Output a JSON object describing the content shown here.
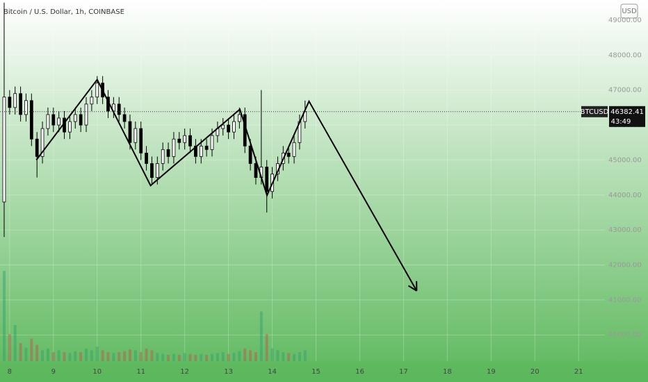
{
  "chart_data": {
    "type": "candlestick",
    "title": "Bitcoin / U.S. Dollar, 1h, COINBASE",
    "currency": "USD",
    "symbol": "BTCUSD",
    "last_price_label": "46382.41",
    "countdown": "43:49",
    "last_price": 46382.41,
    "x": [
      7.875,
      8,
      8.125,
      8.25,
      8.375,
      8.5,
      8.625,
      8.75,
      8.875,
      9,
      9.125,
      9.25,
      9.375,
      9.5,
      9.625,
      9.75,
      9.875,
      10,
      10.125,
      10.25,
      10.375,
      10.5,
      10.625,
      10.75,
      10.875,
      11,
      11.125,
      11.25,
      11.375,
      11.5,
      11.625,
      11.75,
      11.875,
      12,
      12.125,
      12.25,
      12.375,
      12.5,
      12.625,
      12.75,
      12.875,
      13,
      13.125,
      13.25,
      13.375,
      13.5,
      13.625,
      13.75,
      13.875,
      14,
      14.125,
      14.25,
      14.375,
      14.5,
      14.625,
      14.75
    ],
    "open": [
      43800,
      46800,
      46500,
      46900,
      46300,
      46700,
      45600,
      45100,
      45900,
      46300,
      46000,
      46200,
      45800,
      46100,
      46300,
      46000,
      46600,
      46800,
      47200,
      46800,
      46400,
      46600,
      46300,
      46100,
      45500,
      45900,
      45200,
      44900,
      44500,
      44900,
      45300,
      45100,
      45600,
      45500,
      45700,
      45400,
      45100,
      45400,
      45300,
      45700,
      45900,
      46000,
      45800,
      46100,
      46300,
      45400,
      44900,
      44500,
      44800,
      44100,
      44600,
      44900,
      45200,
      45100,
      45500,
      46100
    ],
    "high": [
      49500,
      47000,
      47100,
      47100,
      46900,
      46900,
      45800,
      46100,
      46500,
      46500,
      46400,
      46400,
      46300,
      46500,
      46500,
      46800,
      47000,
      47400,
      47400,
      47000,
      46800,
      46800,
      46500,
      46300,
      46100,
      46100,
      45400,
      45100,
      45100,
      45500,
      45500,
      45800,
      45800,
      45900,
      45900,
      45600,
      45600,
      45600,
      45900,
      46100,
      46200,
      46200,
      46300,
      46500,
      46500,
      45600,
      45100,
      47000,
      45000,
      44800,
      45100,
      45400,
      45400,
      45700,
      46300,
      46700
    ],
    "low": [
      42800,
      46300,
      46300,
      46100,
      46100,
      45400,
      44500,
      44900,
      45700,
      45800,
      45800,
      45600,
      45600,
      45900,
      45800,
      45800,
      46400,
      46600,
      46600,
      46200,
      46200,
      46100,
      45900,
      45300,
      45300,
      45000,
      44700,
      44300,
      44300,
      44700,
      44900,
      44900,
      45300,
      45300,
      45200,
      44900,
      44900,
      45100,
      45100,
      45500,
      45700,
      45600,
      45600,
      45900,
      45200,
      44700,
      44300,
      44300,
      43500,
      43900,
      44400,
      44700,
      44900,
      44900,
      45300,
      45900
    ],
    "close": [
      46800,
      46500,
      46900,
      46300,
      46700,
      45600,
      45100,
      45900,
      46300,
      46000,
      46200,
      45800,
      46100,
      46300,
      46000,
      46600,
      46800,
      47200,
      46800,
      46400,
      46600,
      46300,
      46100,
      45500,
      45900,
      45200,
      44900,
      44500,
      44900,
      45300,
      45100,
      45600,
      45500,
      45700,
      45400,
      45100,
      45400,
      45300,
      45700,
      45900,
      46000,
      45800,
      46100,
      46300,
      45400,
      44900,
      44500,
      44800,
      44100,
      44600,
      44900,
      45200,
      45100,
      45500,
      46100,
      46382.41
    ],
    "volume": [
      100,
      30,
      40,
      20,
      15,
      25,
      18,
      12,
      14,
      10,
      12,
      10,
      9,
      11,
      10,
      14,
      12,
      16,
      12,
      10,
      9,
      10,
      11,
      13,
      12,
      10,
      14,
      12,
      9,
      8,
      7,
      8,
      7,
      9,
      8,
      7,
      8,
      7,
      8,
      9,
      10,
      8,
      9,
      11,
      14,
      12,
      10,
      55,
      30,
      14,
      12,
      10,
      9,
      8,
      10,
      12
    ],
    "vlim": [
      0,
      100
    ],
    "drawing": {
      "x": [
        8.61,
        10.0,
        11.22,
        13.26,
        13.88,
        14.84,
        17.3
      ],
      "y": [
        45000,
        47300,
        44270,
        46450,
        43990,
        46680,
        41260
      ]
    },
    "up_color": "#ffffff",
    "down_color": "#000000",
    "line_color": "#000000",
    "xlim": [
      7.78,
      21.6
    ],
    "xticks": [
      8,
      9,
      10,
      11,
      12,
      13,
      14,
      15,
      16,
      17,
      18,
      19,
      20,
      21
    ],
    "ylim": [
      39250,
      49575
    ],
    "yticks": [
      {
        "value": 40000,
        "label": "40000.00"
      },
      {
        "value": 41000,
        "label": "41000.00"
      },
      {
        "value": 42000,
        "label": "42000.00"
      },
      {
        "value": 43000,
        "label": "43000.00"
      },
      {
        "value": 44000,
        "label": "44000.00"
      },
      {
        "value": 45000,
        "label": "45000.00"
      },
      {
        "value": 46000,
        "label": "46000.00"
      },
      {
        "value": 47000,
        "label": "47000.00"
      },
      {
        "value": 48000,
        "label": "48000.00"
      },
      {
        "value": 49000,
        "label": "49000.00"
      }
    ]
  }
}
